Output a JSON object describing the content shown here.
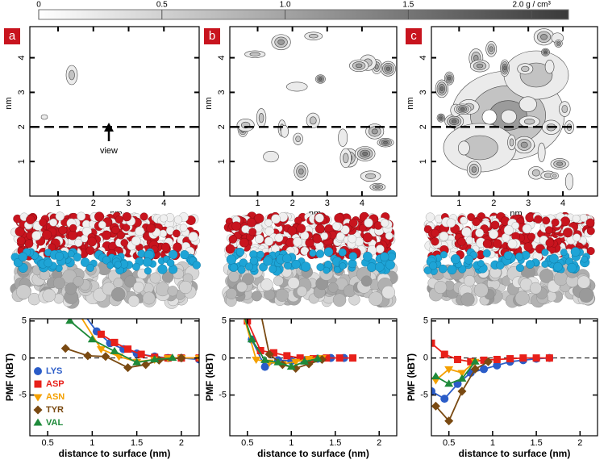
{
  "chart_data": [
    {
      "type": "colorbar",
      "xlim": [
        0,
        2.15
      ],
      "xticks": [
        0,
        0.5,
        {
          "value": 1,
          "label": "1.0"
        },
        1.5,
        {
          "value": 2,
          "label": "2.0 g / cm³"
        }
      ],
      "colors": [
        "#ffffff",
        "#3a3a3a"
      ]
    },
    {
      "type": "contour",
      "panel_label": "a",
      "xlabel": "nm",
      "ylabel": "nm",
      "xlim": [
        0.2,
        5
      ],
      "ylim": [
        0,
        4.9
      ],
      "xticks": [
        1,
        2,
        3,
        4
      ],
      "yticks": [
        1,
        2,
        3,
        4
      ],
      "view_line": 2,
      "annotation": "view"
    },
    {
      "type": "contour",
      "panel_label": "b",
      "xlabel": "nm",
      "ylabel": "nm",
      "xlim": [
        0.2,
        5
      ],
      "ylim": [
        0,
        4.9
      ],
      "xticks": [
        1,
        2,
        3,
        4
      ],
      "yticks": [
        1,
        2,
        3,
        4
      ],
      "view_line": 2
    },
    {
      "type": "contour",
      "panel_label": "c",
      "xlabel": "nm",
      "ylabel": "nm",
      "xlim": [
        0.2,
        5
      ],
      "ylim": [
        0,
        4.9
      ],
      "xticks": [
        1,
        2,
        3,
        4
      ],
      "yticks": [
        1,
        2,
        3,
        4
      ],
      "view_line": 2
    },
    {
      "type": "line",
      "xlabel": "distance to surface (nm)",
      "ylabel": "PMF (kBT)",
      "xlim": [
        0.3,
        2.2
      ],
      "ylim": [
        -10.5,
        5.3
      ],
      "xticks": [
        0.5,
        1,
        1.5,
        2
      ],
      "yticks": [
        -5,
        0,
        5
      ],
      "zero_line": true,
      "legend": "lower left",
      "series": [
        {
          "name": "LYS",
          "color": "#2a5cc8",
          "marker": "circle",
          "x": [
            0.9,
            1.05,
            1.2,
            1.35,
            1.5,
            1.7,
            1.85,
            2.0,
            2.2
          ],
          "values": [
            6,
            3.6,
            2.0,
            1.2,
            0.6,
            0.2,
            0,
            0,
            -0.2
          ]
        },
        {
          "name": "ASP",
          "color": "#e8201a",
          "marker": "square",
          "x": [
            1.1,
            1.25,
            1.4,
            1.55,
            1.7,
            1.85,
            2.0,
            2.2
          ],
          "values": [
            3.2,
            2.1,
            1.2,
            0.5,
            0.1,
            0,
            0,
            0
          ]
        },
        {
          "name": "ASN",
          "color": "#f4a000",
          "marker": "triangle-down",
          "x": [
            0.85,
            1.1,
            1.3,
            1.5,
            1.7,
            1.85,
            2.0,
            2.2
          ],
          "values": [
            6,
            1.2,
            0.2,
            -0.5,
            -0.2,
            0,
            0,
            0
          ]
        },
        {
          "name": "TYR",
          "color": "#7a4a12",
          "marker": "diamond",
          "x": [
            0.7,
            0.95,
            1.15,
            1.4,
            1.6,
            1.75,
            2.0
          ],
          "values": [
            1.3,
            0.3,
            0.2,
            -1.3,
            -0.9,
            -0.3,
            0
          ]
        },
        {
          "name": "VAL",
          "color": "#1e8a3a",
          "marker": "triangle-up",
          "x": [
            0.75,
            1.0,
            1.25,
            1.5,
            1.7,
            1.9
          ],
          "values": [
            5,
            2.5,
            0.9,
            -0.6,
            -0.2,
            0
          ]
        }
      ]
    },
    {
      "type": "line",
      "xlabel": "distance to surface (nm)",
      "ylabel": "PMF (kBT)",
      "xlim": [
        0.3,
        2.2
      ],
      "ylim": [
        -10.5,
        5.3
      ],
      "xticks": [
        0.5,
        1,
        1.5,
        2
      ],
      "yticks": [
        -5,
        0,
        5
      ],
      "zero_line": true,
      "series": [
        {
          "color": "#2a5cc8",
          "marker": "circle",
          "x": [
            0.55,
            0.7,
            0.85,
            1.0,
            1.15,
            1.3,
            1.45,
            1.6
          ],
          "values": [
            2.5,
            -1.2,
            -0.3,
            -0.4,
            -0.3,
            -0.1,
            0,
            0
          ]
        },
        {
          "color": "#e8201a",
          "marker": "square",
          "x": [
            0.5,
            0.65,
            0.8,
            0.95,
            1.1,
            1.25,
            1.4,
            1.55,
            1.7
          ],
          "values": [
            5,
            1.0,
            0.7,
            0.3,
            0,
            -0.1,
            0,
            0,
            0
          ]
        },
        {
          "color": "#f4a000",
          "marker": "triangle-down",
          "x": [
            0.45,
            0.6,
            0.75,
            0.9,
            1.05,
            1.2,
            1.35
          ],
          "values": [
            6,
            -0.2,
            -0.6,
            -0.8,
            -0.5,
            -0.1,
            0
          ]
        },
        {
          "color": "#7a4a12",
          "marker": "diamond",
          "x": [
            0.6,
            0.75,
            0.9,
            1.05,
            1.2,
            1.35
          ],
          "values": [
            9,
            0.5,
            -0.9,
            -1.4,
            -0.8,
            -0.2
          ]
        },
        {
          "color": "#1e8a3a",
          "marker": "triangle-up",
          "x": [
            0.4,
            0.55,
            0.7,
            0.85,
            1.0,
            1.15,
            1.3
          ],
          "values": [
            8,
            2.5,
            -0.3,
            -0.6,
            -1.2,
            -0.5,
            -0.1
          ]
        }
      ]
    },
    {
      "type": "line",
      "xlabel": "distance to surface (nm)",
      "ylabel": "PMF (kBT)",
      "xlim": [
        0.3,
        2.2
      ],
      "ylim": [
        -10.5,
        5.3
      ],
      "xticks": [
        0.5,
        1,
        1.5,
        2
      ],
      "yticks": [
        -5,
        0,
        5
      ],
      "zero_line": true,
      "series": [
        {
          "color": "#2a5cc8",
          "marker": "circle",
          "x": [
            0.3,
            0.45,
            0.6,
            0.75,
            0.9,
            1.05,
            1.2,
            1.35,
            1.5,
            1.65
          ],
          "values": [
            -4.5,
            -5.5,
            -3.5,
            -2,
            -1.5,
            -1,
            -0.5,
            -0.3,
            -0.1,
            0
          ]
        },
        {
          "color": "#e8201a",
          "marker": "square",
          "x": [
            0.3,
            0.45,
            0.6,
            0.75,
            0.9,
            1.05,
            1.2,
            1.35,
            1.5,
            1.65
          ],
          "values": [
            2,
            0.5,
            -0.2,
            -0.5,
            -0.3,
            -0.2,
            -0.1,
            0,
            0,
            0
          ]
        },
        {
          "color": "#f4a000",
          "marker": "triangle-down",
          "x": [
            0.35,
            0.5,
            0.65,
            0.8
          ],
          "values": [
            -3,
            -1.5,
            -2,
            -0.5
          ]
        },
        {
          "color": "#7a4a12",
          "marker": "diamond",
          "x": [
            0.35,
            0.5,
            0.65,
            0.8,
            0.95
          ],
          "values": [
            -6.5,
            -8.5,
            -4.5,
            -1.5,
            -0.5
          ]
        },
        {
          "color": "#1e8a3a",
          "marker": "triangle-up",
          "x": [
            0.35,
            0.5,
            0.65,
            0.8
          ],
          "values": [
            -2.5,
            -3.5,
            -2.8,
            -0.5
          ]
        }
      ]
    }
  ]
}
